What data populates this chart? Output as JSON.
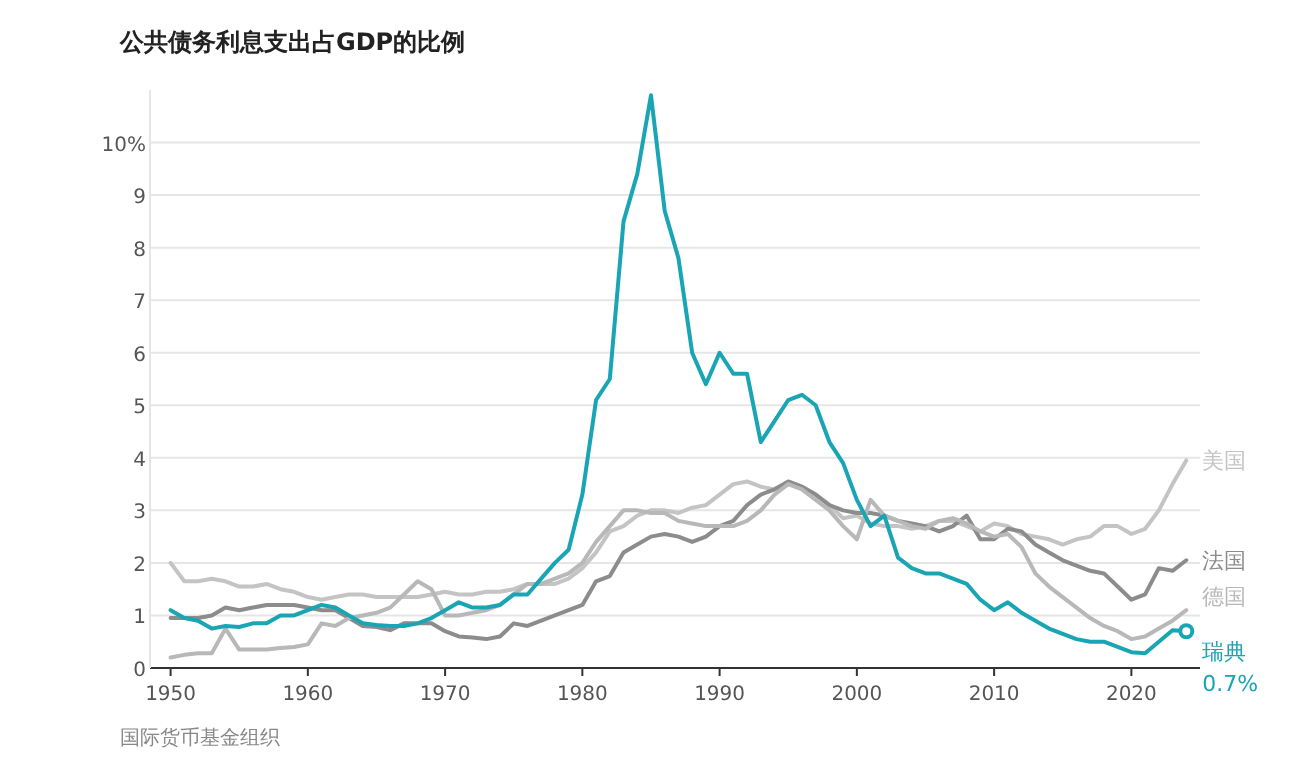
{
  "chart_data": {
    "type": "line",
    "title": "公共债务利息支出占GDP的比例",
    "annotations": [
      "国际货币基金组织"
    ],
    "x": [
      1950,
      1951,
      1952,
      1953,
      1954,
      1955,
      1956,
      1957,
      1958,
      1959,
      1960,
      1961,
      1962,
      1963,
      1964,
      1965,
      1966,
      1967,
      1968,
      1969,
      1970,
      1971,
      1972,
      1973,
      1974,
      1975,
      1976,
      1977,
      1978,
      1979,
      1980,
      1981,
      1982,
      1983,
      1984,
      1985,
      1986,
      1987,
      1988,
      1989,
      1990,
      1991,
      1992,
      1993,
      1994,
      1995,
      1996,
      1997,
      1998,
      1999,
      2000,
      2001,
      2002,
      2003,
      2004,
      2005,
      2006,
      2007,
      2008,
      2009,
      2010,
      2011,
      2012,
      2013,
      2014,
      2015,
      2016,
      2017,
      2018,
      2019,
      2020,
      2021,
      2022,
      2023,
      2024
    ],
    "series": [
      {
        "name": "美国",
        "color": "#c4c4c4",
        "values": [
          2.0,
          1.65,
          1.65,
          1.7,
          1.65,
          1.55,
          1.55,
          1.6,
          1.5,
          1.45,
          1.35,
          1.3,
          1.35,
          1.4,
          1.4,
          1.35,
          1.35,
          1.35,
          1.35,
          1.4,
          1.45,
          1.4,
          1.4,
          1.45,
          1.45,
          1.5,
          1.6,
          1.6,
          1.6,
          1.7,
          1.9,
          2.2,
          2.6,
          2.7,
          2.9,
          3.0,
          3.0,
          2.95,
          3.05,
          3.1,
          3.3,
          3.5,
          3.55,
          3.45,
          3.4,
          3.5,
          3.45,
          3.3,
          3.1,
          2.85,
          2.9,
          2.75,
          2.7,
          2.7,
          2.65,
          2.7,
          2.8,
          2.8,
          2.7,
          2.6,
          2.75,
          2.7,
          2.55,
          2.5,
          2.45,
          2.35,
          2.45,
          2.5,
          2.7,
          2.7,
          2.55,
          2.65,
          3.0,
          3.5,
          3.95
        ]
      },
      {
        "name": "法国",
        "color": "#8c8c8c",
        "values": [
          0.95,
          0.95,
          0.95,
          1.0,
          1.15,
          1.1,
          1.15,
          1.2,
          1.2,
          1.2,
          1.15,
          1.1,
          1.1,
          0.95,
          0.8,
          0.78,
          0.72,
          0.85,
          0.85,
          0.85,
          0.7,
          0.6,
          0.58,
          0.55,
          0.6,
          0.85,
          0.8,
          0.9,
          1.0,
          1.1,
          1.2,
          1.65,
          1.75,
          2.2,
          2.35,
          2.5,
          2.55,
          2.5,
          2.4,
          2.5,
          2.7,
          2.8,
          3.1,
          3.3,
          3.4,
          3.55,
          3.45,
          3.3,
          3.1,
          3.0,
          2.95,
          2.95,
          2.9,
          2.8,
          2.75,
          2.7,
          2.6,
          2.7,
          2.9,
          2.45,
          2.45,
          2.65,
          2.6,
          2.35,
          2.2,
          2.05,
          1.95,
          1.85,
          1.8,
          1.55,
          1.3,
          1.4,
          1.9,
          1.85,
          2.05
        ]
      },
      {
        "name": "德国",
        "color": "#b8b8b8",
        "values": [
          0.2,
          0.25,
          0.28,
          0.28,
          0.75,
          0.35,
          0.35,
          0.35,
          0.38,
          0.4,
          0.45,
          0.85,
          0.8,
          0.95,
          1.0,
          1.05,
          1.15,
          1.4,
          1.65,
          1.5,
          1.0,
          1.0,
          1.05,
          1.1,
          1.2,
          1.4,
          1.6,
          1.6,
          1.7,
          1.8,
          2.0,
          2.4,
          2.7,
          3.0,
          3.0,
          2.95,
          2.95,
          2.8,
          2.75,
          2.7,
          2.7,
          2.7,
          2.8,
          3.0,
          3.3,
          3.5,
          3.4,
          3.2,
          3.0,
          2.7,
          2.45,
          3.2,
          2.9,
          2.8,
          2.7,
          2.65,
          2.8,
          2.85,
          2.75,
          2.6,
          2.5,
          2.55,
          2.3,
          1.8,
          1.55,
          1.35,
          1.15,
          0.95,
          0.8,
          0.7,
          0.55,
          0.6,
          0.75,
          0.9,
          1.1
        ]
      },
      {
        "name": "瑞典",
        "color": "#1aa5b5",
        "values": [
          1.1,
          0.95,
          0.9,
          0.75,
          0.8,
          0.78,
          0.85,
          0.85,
          1.0,
          1.0,
          1.1,
          1.2,
          1.15,
          1.0,
          0.85,
          0.82,
          0.8,
          0.8,
          0.85,
          0.95,
          1.1,
          1.25,
          1.15,
          1.15,
          1.2,
          1.4,
          1.4,
          1.7,
          2.0,
          2.25,
          3.3,
          5.1,
          5.5,
          8.5,
          9.4,
          10.9,
          8.7,
          7.8,
          6.0,
          5.4,
          6.0,
          5.6,
          5.6,
          4.3,
          4.7,
          5.1,
          5.2,
          5.0,
          4.3,
          3.9,
          3.2,
          2.7,
          2.9,
          2.1,
          1.9,
          1.8,
          1.8,
          1.7,
          1.6,
          1.3,
          1.1,
          1.25,
          1.05,
          0.9,
          0.75,
          0.65,
          0.55,
          0.5,
          0.5,
          0.4,
          0.3,
          0.28,
          0.5,
          0.72,
          0.7
        ],
        "value_labels": [
          null,
          null,
          null,
          null,
          null,
          null,
          null,
          null,
          null,
          null,
          null,
          null,
          null,
          null,
          null,
          null,
          null,
          null,
          null,
          null,
          null,
          null,
          null,
          null,
          null,
          null,
          null,
          null,
          null,
          null,
          null,
          null,
          null,
          null,
          null,
          null,
          null,
          null,
          null,
          null,
          null,
          null,
          null,
          null,
          null,
          null,
          null,
          null,
          null,
          null,
          null,
          null,
          null,
          null,
          null,
          null,
          null,
          null,
          null,
          null,
          null,
          null,
          null,
          null,
          null,
          null,
          null,
          null,
          null,
          null,
          null,
          null,
          null,
          null,
          "0.7%"
        ]
      }
    ],
    "xlim": [
      1948.5,
      2025
    ],
    "xticks": [
      1950,
      1960,
      1970,
      1980,
      1990,
      2000,
      2010,
      2020
    ],
    "ylim": [
      0,
      11
    ],
    "yticks": [
      0,
      1,
      2,
      3,
      4,
      5,
      6,
      7,
      8,
      9,
      {
        "value": 10,
        "label": "10%"
      }
    ],
    "grid": "y",
    "legend": false
  }
}
